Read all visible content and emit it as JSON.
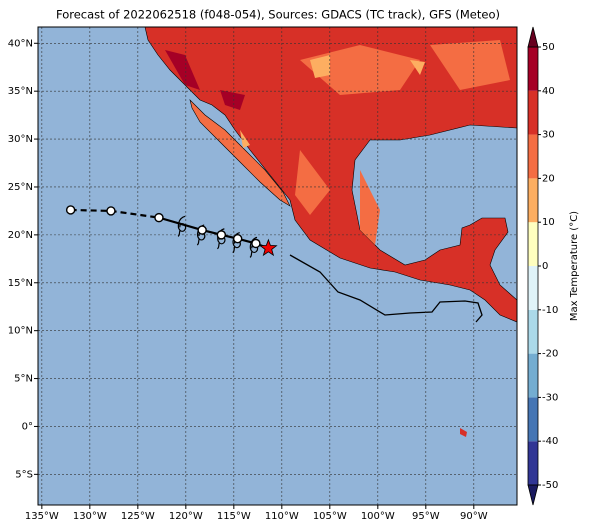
{
  "chart_data": {
    "type": "map",
    "title": "Forecast of 2022062518 (f048-054), Sources: GDACS (TC track), GFS (Meteo)",
    "xlim": [
      -135.4,
      -85.5
    ],
    "ylim": [
      -8.2,
      41.7
    ],
    "xticks": [
      {
        "value": -135,
        "label": "135°W"
      },
      {
        "value": -130,
        "label": "130°W"
      },
      {
        "value": -125,
        "label": "125°W"
      },
      {
        "value": -120,
        "label": "120°W"
      },
      {
        "value": -115,
        "label": "115°W"
      },
      {
        "value": -110,
        "label": "110°W"
      },
      {
        "value": -105,
        "label": "105°W"
      },
      {
        "value": -100,
        "label": "100°W"
      },
      {
        "value": -95,
        "label": "95°W"
      },
      {
        "value": -90,
        "label": "90°W"
      }
    ],
    "yticks": [
      {
        "value": -5,
        "label": "5°S"
      },
      {
        "value": 0,
        "label": "0°"
      },
      {
        "value": 5,
        "label": "5°N"
      },
      {
        "value": 10,
        "label": "10°N"
      },
      {
        "value": 15,
        "label": "15°N"
      },
      {
        "value": 20,
        "label": "20°N"
      },
      {
        "value": 25,
        "label": "25°N"
      },
      {
        "value": 30,
        "label": "30°N"
      },
      {
        "value": 35,
        "label": "35°N"
      },
      {
        "value": 40,
        "label": "40°N"
      }
    ],
    "grid": true,
    "ocean_color": "#92b4d8",
    "track": [
      {
        "linestyle": "dashed",
        "lon": [
          -132.0,
          -127.8,
          -122.8
        ],
        "lat": [
          22.6,
          22.5,
          21.8
        ]
      },
      {
        "linestyle": "solid",
        "lon": [
          -122.8,
          -118.3,
          -116.3,
          -114.6,
          -112.7,
          -111.4
        ],
        "lat": [
          21.8,
          20.5,
          20.0,
          19.6,
          19.1,
          18.6
        ]
      }
    ],
    "track_points": {
      "lon": [
        -132.0,
        -127.8,
        -122.8,
        -118.3,
        -116.3,
        -114.6,
        -112.7
      ],
      "lat": [
        22.6,
        22.5,
        21.8,
        20.5,
        20.0,
        19.6,
        19.1
      ]
    },
    "storm_symbols": {
      "lon": [
        -120.4,
        -118.4,
        -116.3,
        -114.7,
        -112.9
      ],
      "lat": [
        21.0,
        20.1,
        19.7,
        19.3,
        18.8
      ]
    },
    "current_position": {
      "lon": -111.4,
      "lat": 18.6
    },
    "colorbar": {
      "label": "Max Temperature (°C)",
      "ticks": [
        -50,
        -40,
        -30,
        -20,
        -10,
        0,
        10,
        20,
        30,
        40,
        50
      ],
      "colors": [
        "#313695",
        "#4575b4",
        "#74add1",
        "#abd9e9",
        "#e0f3f8",
        "#ffffbf",
        "#fdae61",
        "#f46d43",
        "#d73027",
        "#a50026"
      ]
    }
  }
}
